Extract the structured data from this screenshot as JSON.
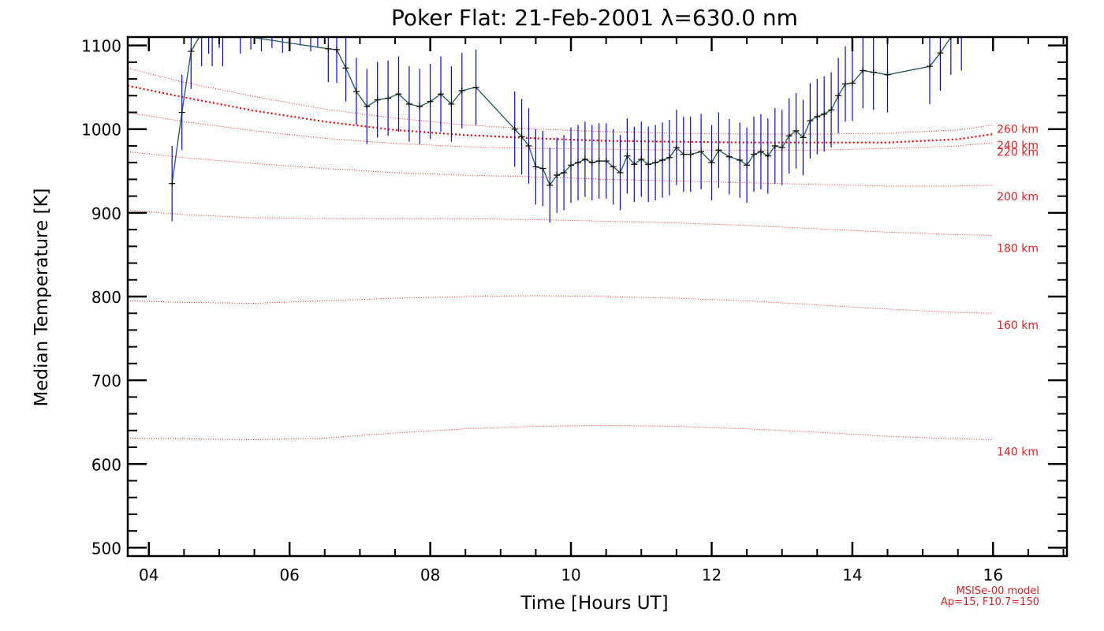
{
  "chart_data": {
    "type": "line",
    "title": "Poker Flat: 21-Feb-2001 λ=630.0 nm",
    "xlabel": "Time [Hours UT]",
    "ylabel": "Median Temperature [K]",
    "xlim": [
      3.7,
      17.05
    ],
    "ylim": [
      490,
      1110
    ],
    "x_ticks": [
      4,
      6,
      8,
      10,
      12,
      14,
      16
    ],
    "x_tick_labels": [
      "04",
      "06",
      "08",
      "10",
      "12",
      "14",
      "16"
    ],
    "y_ticks": [
      500,
      600,
      700,
      800,
      900,
      1000,
      1100
    ],
    "y_tick_labels": [
      "500",
      "600",
      "700",
      "800",
      "900",
      "1000",
      "1100"
    ],
    "colors": {
      "data": "#000000",
      "error": "#0000ff",
      "model": "#ff0000",
      "model_text": "#e02020"
    },
    "measured": {
      "name": "Median temperature",
      "x": [
        4.33,
        4.47,
        4.6,
        4.75,
        4.9,
        5.05,
        6.55,
        6.67,
        6.8,
        6.95,
        7.1,
        7.25,
        7.4,
        7.55,
        7.7,
        7.85,
        8.0,
        8.15,
        8.3,
        8.45,
        8.65,
        9.2,
        9.3,
        9.4,
        9.5,
        9.6,
        9.7,
        9.8,
        9.9,
        10.0,
        10.1,
        10.2,
        10.3,
        10.4,
        10.5,
        10.6,
        10.7,
        10.8,
        10.9,
        11.0,
        11.1,
        11.2,
        11.3,
        11.4,
        11.5,
        11.6,
        11.7,
        11.85,
        12.0,
        12.1,
        12.25,
        12.4,
        12.5,
        12.6,
        12.7,
        12.8,
        12.9,
        13.0,
        13.1,
        13.2,
        13.3,
        13.4,
        13.5,
        13.6,
        13.7,
        13.8,
        13.9,
        14.0,
        14.15,
        14.3,
        14.5,
        15.1,
        15.25,
        15.4,
        15.55
      ],
      "y": [
        935,
        1020,
        1093,
        1115,
        1115,
        1115,
        1096,
        1095,
        1073,
        1045,
        1027,
        1035,
        1037,
        1042,
        1030,
        1027,
        1033,
        1042,
        1030,
        1046,
        1050,
        1000,
        991,
        980,
        955,
        953,
        933,
        945,
        948,
        957,
        960,
        964,
        960,
        962,
        962,
        955,
        948,
        968,
        958,
        964,
        958,
        960,
        963,
        966,
        978,
        970,
        970,
        973,
        960,
        975,
        967,
        963,
        957,
        970,
        973,
        968,
        980,
        978,
        992,
        998,
        990,
        1010,
        1015,
        1018,
        1023,
        1040,
        1054,
        1055,
        1070,
        1068,
        1065,
        1075,
        1091,
        1110,
        1115
      ],
      "error": [
        45,
        45,
        45,
        40,
        40,
        40,
        40,
        40,
        40,
        40,
        45,
        45,
        45,
        45,
        45,
        45,
        45,
        45,
        45,
        45,
        45,
        45,
        45,
        45,
        45,
        45,
        45,
        45,
        45,
        45,
        45,
        45,
        45,
        45,
        45,
        45,
        45,
        45,
        45,
        45,
        45,
        45,
        45,
        45,
        45,
        45,
        45,
        45,
        45,
        45,
        45,
        45,
        45,
        45,
        45,
        45,
        45,
        45,
        45,
        45,
        45,
        45,
        45,
        45,
        45,
        45,
        45,
        45,
        45,
        45,
        45,
        45,
        45,
        45,
        45
      ]
    },
    "extra_error_bars": {
      "x": [
        4.85,
        5.0,
        5.3,
        5.45,
        5.6,
        5.75,
        5.9,
        6.0,
        6.15,
        6.3,
        6.4
      ],
      "y": [
        1110,
        1115,
        1105,
        1110,
        1108,
        1112,
        1106,
        1112,
        1115,
        1108,
        1112
      ],
      "error": [
        20,
        18,
        15,
        15,
        15,
        15,
        15,
        15,
        15,
        15,
        15
      ]
    },
    "model": {
      "name": "MSISe-00 model",
      "x": [
        3.7,
        4.5,
        5.5,
        6.5,
        7.5,
        8.5,
        9.5,
        10.5,
        11.5,
        12.5,
        13.5,
        14.5,
        15.5,
        16.0
      ],
      "series": [
        {
          "name": "140 km",
          "label": "140 km",
          "y": [
            631,
            630,
            629,
            631,
            637,
            642,
            645,
            646,
            645,
            642,
            638,
            633,
            630,
            629
          ]
        },
        {
          "name": "160 km",
          "label": "160 km",
          "y": [
            795,
            793,
            792,
            795,
            798,
            800,
            801,
            800,
            798,
            795,
            790,
            785,
            781,
            780
          ]
        },
        {
          "name": "180 km",
          "label": "180 km",
          "y": [
            903,
            898,
            894,
            893,
            893,
            893,
            892,
            890,
            888,
            885,
            881,
            877,
            874,
            873
          ]
        },
        {
          "name": "200 km",
          "label": "200 km",
          "y": [
            973,
            966,
            959,
            953,
            948,
            945,
            943,
            940,
            938,
            936,
            934,
            932,
            932,
            933
          ]
        },
        {
          "name": "220 km",
          "label": "220 km",
          "y": [
            1020,
            1009,
            998,
            989,
            983,
            979,
            977,
            976,
            975,
            975,
            975,
            977,
            980,
            984
          ]
        },
        {
          "name": "240 km",
          "label": "240 km",
          "y": [
            1052,
            1038,
            1022,
            1009,
            999,
            993,
            989,
            986,
            985,
            984,
            984,
            984,
            988,
            994
          ]
        },
        {
          "name": "260 km",
          "label": "260 km",
          "y": [
            1073,
            1056,
            1039,
            1024,
            1013,
            1005,
            1000,
            997,
            995,
            994,
            994,
            995,
            999,
            1005
          ]
        }
      ],
      "highlighted": "240 km"
    },
    "annotation_lines": [
      "MSISe-00 model",
      "Ap=15, F10.7=150"
    ]
  }
}
